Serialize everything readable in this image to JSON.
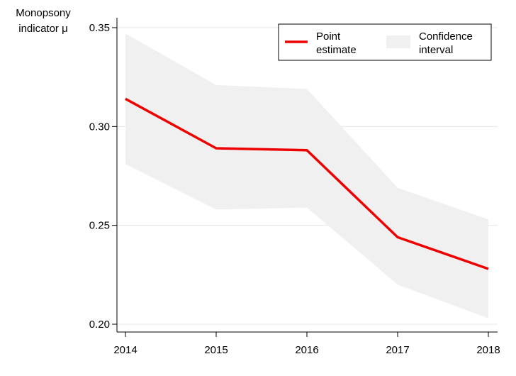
{
  "chart_data": {
    "type": "line",
    "ylabel_lines": [
      "Monopsony",
      "indicator μ"
    ],
    "x": [
      "2014",
      "2015",
      "2016",
      "2017",
      "2018"
    ],
    "series": [
      {
        "name": "Point estimate",
        "values": [
          0.314,
          0.289,
          0.288,
          0.244,
          0.228
        ]
      }
    ],
    "confidence_interval": {
      "name": "Confidence interval",
      "lower": [
        0.281,
        0.258,
        0.259,
        0.22,
        0.203
      ],
      "upper": [
        0.347,
        0.321,
        0.319,
        0.269,
        0.253
      ]
    },
    "yticks": [
      "0.20",
      "0.25",
      "0.30",
      "0.35"
    ],
    "ylim": [
      0.2,
      0.35
    ],
    "grid": true,
    "legend": {
      "position": "top-right",
      "point_lines": [
        "Point",
        "estimate"
      ],
      "ci_lines": [
        "Confidence",
        "interval"
      ]
    },
    "colors": {
      "line": "#ee0000",
      "band": "#f0f0f0",
      "grid": "#e6e6e6",
      "axis": "#000000"
    }
  }
}
